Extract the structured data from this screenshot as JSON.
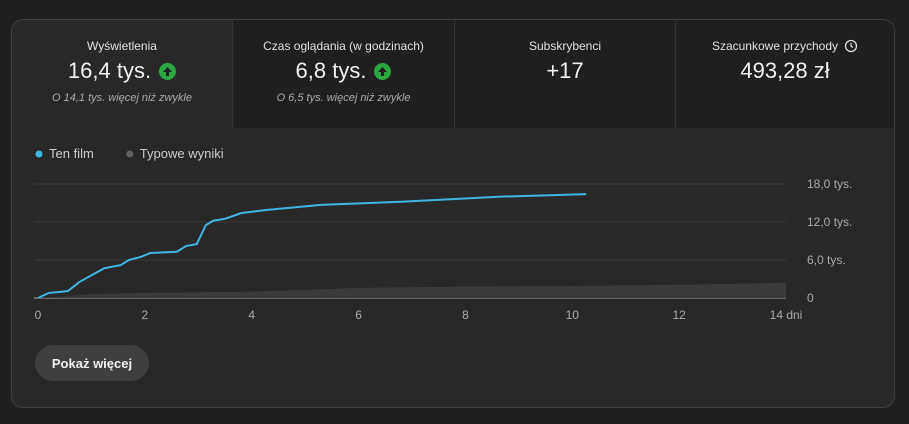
{
  "metrics": [
    {
      "label": "Wyświetlenia",
      "value": "16,4 tys.",
      "note": "O 14,1 tys. więcej niż zwykle"
    },
    {
      "label": "Czas oglądania (w godzinach)",
      "value": "6,8 tys.",
      "note": "O 6,5 tys. więcej niż zwykle"
    },
    {
      "label": "Subskrybenci",
      "value": "+17"
    },
    {
      "label": "Szacunkowe przychody",
      "value": "493,28 zł"
    }
  ],
  "chart_data": {
    "type": "line",
    "xlim": [
      0,
      14
    ],
    "xticks": [
      0,
      2,
      4,
      6,
      8,
      10,
      12,
      {
        "value": 14,
        "label": "14 dni"
      }
    ],
    "ylim": [
      0,
      18
    ],
    "yticks": [
      0,
      {
        "value": 6,
        "label": "6,0 tys."
      },
      {
        "value": 12,
        "label": "12,0 tys."
      },
      {
        "value": 18,
        "label": "18,0 tys."
      }
    ],
    "grid": true,
    "series": [
      {
        "name": "Ten film",
        "color": "#41b4e0",
        "x": [
          0,
          0.2,
          0.4,
          0.56,
          0.77,
          1.0,
          1.24,
          1.55,
          1.7,
          1.93,
          2.1,
          2.6,
          2.77,
          2.97,
          3.14,
          3.28,
          3.5,
          3.8,
          4.27,
          4.92,
          5.3,
          6.8,
          8.67,
          10.26
        ],
        "values": [
          0,
          0.8,
          0.95,
          1.1,
          2.5,
          3.6,
          4.7,
          5.2,
          6.0,
          6.5,
          7.1,
          7.3,
          8.2,
          8.5,
          11.5,
          12.2,
          12.5,
          13.4,
          13.9,
          14.4,
          14.7,
          15.2,
          16.0,
          16.4
        ]
      },
      {
        "name": "Typowe wyniki",
        "color": "#606060",
        "x": [
          0,
          1,
          2,
          4,
          6,
          8,
          10,
          12,
          14
        ],
        "values": [
          0,
          0.6,
          0.8,
          1.0,
          1.6,
          1.8,
          1.9,
          2.1,
          2.4
        ]
      }
    ]
  },
  "button": "Pokaż więcej"
}
